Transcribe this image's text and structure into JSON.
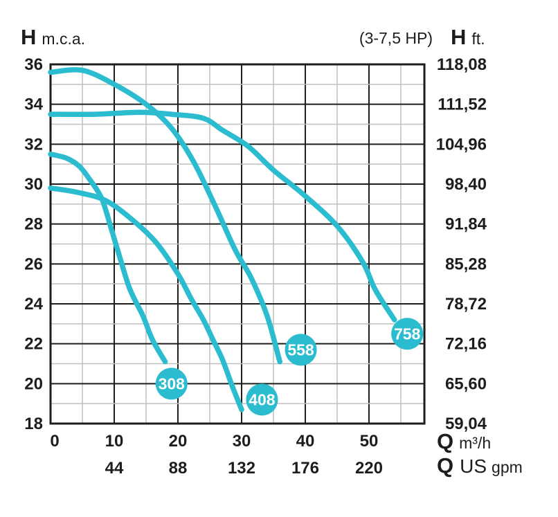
{
  "header": {
    "left_symbol": "H",
    "left_unit": "m.c.a.",
    "power_range": "(3-7,5 HP)",
    "right_symbol": "H",
    "right_unit": "ft."
  },
  "footer": {
    "flow_symbol_metric": "Q",
    "flow_unit_metric": "m³/h",
    "flow_symbol_us": "Q",
    "flow_unit_us": "US",
    "flow_unit_us_small": "gpm"
  },
  "colors": {
    "curve": "#2bbccf",
    "badge": "#2bbccf",
    "badge_text": "#ffffff",
    "text": "#1d1d1b",
    "grid_major": "#1d1d1b",
    "grid_minor": "#bfbfbf",
    "background": "#ffffff"
  },
  "chart_data": {
    "type": "line",
    "title": "(3-7,5 HP)",
    "xlabel": "Q m³/h",
    "xlabel_secondary": "Q US gpm",
    "ylabel_left": "H m.c.a.",
    "ylabel_right": "H ft.",
    "grid": true,
    "x_axis": {
      "min": 0,
      "max": 58.7,
      "minor_step": 5,
      "major_ticks": [
        0,
        10,
        20,
        30,
        40,
        50
      ],
      "tick_labels": [
        "0",
        "10",
        "20",
        "30",
        "40",
        "50"
      ],
      "secondary_ticks": [
        10,
        20,
        30,
        40,
        50
      ],
      "secondary_tick_labels": [
        "44",
        "88",
        "132",
        "176",
        "220"
      ]
    },
    "y_axis": {
      "min": 18,
      "max": 36,
      "major_step": 2,
      "minor_step": 1,
      "tick_labels_left": [
        "36",
        "34",
        "32",
        "30",
        "28",
        "26",
        "24",
        "22",
        "20",
        "18"
      ],
      "tick_labels_right": [
        "118,08",
        "111,52",
        "104,96",
        "98,40",
        "91,84",
        "85,28",
        "78,72",
        "72,16",
        "65,60",
        "59,04"
      ]
    },
    "series": [
      {
        "name": "308",
        "badge": [
          19.0,
          20.0
        ],
        "points": [
          [
            0,
            31.5
          ],
          [
            2.5,
            31.3
          ],
          [
            4.5,
            30.9
          ],
          [
            6,
            30.3
          ],
          [
            8,
            29.3
          ],
          [
            9.5,
            27.8
          ],
          [
            11,
            26.2
          ],
          [
            12.5,
            24.7
          ],
          [
            14.5,
            23.4
          ],
          [
            16,
            22.2
          ],
          [
            18,
            21.1
          ]
        ]
      },
      {
        "name": "408",
        "badge": [
          33.2,
          19.2
        ],
        "points": [
          [
            0,
            29.8
          ],
          [
            4,
            29.6
          ],
          [
            8.5,
            29.2
          ],
          [
            12.5,
            28.3
          ],
          [
            16.5,
            27.1
          ],
          [
            20,
            25.5
          ],
          [
            22,
            24.3
          ],
          [
            24,
            23.2
          ],
          [
            25.5,
            22.2
          ],
          [
            27,
            21.2
          ],
          [
            28.5,
            19.9
          ],
          [
            30,
            18.7
          ]
        ]
      },
      {
        "name": "558",
        "badge": [
          39.3,
          21.7
        ],
        "points": [
          [
            0,
            35.6
          ],
          [
            5,
            35.7
          ],
          [
            10,
            35.0
          ],
          [
            15,
            34.0
          ],
          [
            19,
            32.8
          ],
          [
            22.5,
            31.1
          ],
          [
            26,
            28.8
          ],
          [
            29,
            26.7
          ],
          [
            31.5,
            25.3
          ],
          [
            34,
            23.4
          ],
          [
            36,
            21.1
          ]
        ]
      },
      {
        "name": "758",
        "badge": [
          56.0,
          22.5
        ],
        "points": [
          [
            0,
            33.5
          ],
          [
            7,
            33.5
          ],
          [
            14,
            33.6
          ],
          [
            19,
            33.5
          ],
          [
            24,
            33.3
          ],
          [
            27,
            32.7
          ],
          [
            31,
            31.9
          ],
          [
            35,
            30.7
          ],
          [
            40,
            29.4
          ],
          [
            45,
            27.9
          ],
          [
            49,
            26.1
          ],
          [
            51,
            24.7
          ],
          [
            54,
            23.2
          ]
        ]
      }
    ]
  }
}
